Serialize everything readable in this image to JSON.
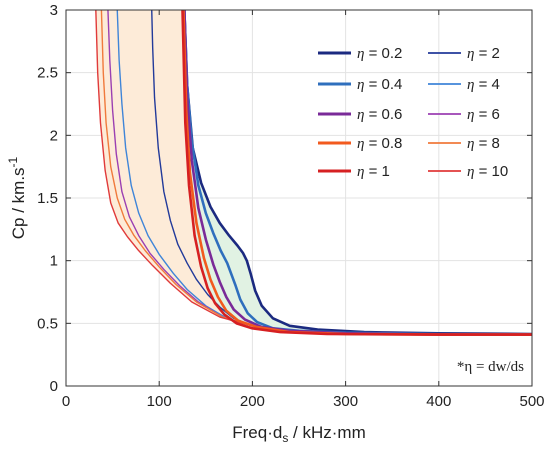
{
  "chart_data": {
    "type": "line",
    "title": "",
    "xlabel": "Freq·d",
    "xlabel_sub": "s",
    "xlabel_rest": " / kHz·mm",
    "ylabel": "Cp / km.s",
    "ylabel_sup": "-1",
    "xlim": [
      0,
      500
    ],
    "ylim": [
      0,
      3
    ],
    "xticks": [
      0,
      100,
      200,
      300,
      400,
      500
    ],
    "yticks": [
      0,
      0.5,
      1,
      1.5,
      2,
      2.5,
      3
    ],
    "xtick_labels": [
      "0",
      "100",
      "200",
      "300",
      "400",
      "500"
    ],
    "ytick_labels": [
      "0",
      "0.5",
      "1",
      "1.5",
      "2",
      "2.5",
      "3"
    ],
    "grid": true,
    "legend_position": "top-right",
    "legend_symbol": "η",
    "legend_eq": " = ",
    "annotation": "*η = dw/ds",
    "colors": {
      "shade_orange": "#fdebd8",
      "shade_green": "#e1f2e3",
      "grid": "#e3e3e3"
    },
    "series": [
      {
        "name": "0.2",
        "color": "#1b2a80",
        "width": 2.6,
        "x": [
          127,
          130,
          136,
          145,
          155,
          165,
          175,
          184,
          190,
          194,
          198,
          203,
          210,
          222,
          240,
          270,
          320,
          400,
          500
        ],
        "y": [
          3.0,
          2.4,
          1.9,
          1.62,
          1.43,
          1.3,
          1.2,
          1.12,
          1.06,
          1.0,
          0.9,
          0.76,
          0.64,
          0.54,
          0.48,
          0.45,
          0.43,
          0.42,
          0.415
        ]
      },
      {
        "name": "0.4",
        "color": "#2f6fbd",
        "width": 2.6,
        "x": [
          127,
          130,
          135,
          142,
          150,
          158,
          166,
          173,
          178,
          182,
          187,
          195,
          205,
          222,
          250,
          300,
          400,
          500
        ],
        "y": [
          3.0,
          2.4,
          1.95,
          1.6,
          1.38,
          1.22,
          1.08,
          0.98,
          0.88,
          0.8,
          0.69,
          0.58,
          0.51,
          0.46,
          0.44,
          0.425,
          0.415,
          0.41
        ]
      },
      {
        "name": "0.6",
        "color": "#7a2a98",
        "width": 2.6,
        "x": [
          127,
          130,
          135,
          142,
          150,
          158,
          165,
          172,
          180,
          192,
          210,
          240,
          300,
          400,
          500
        ],
        "y": [
          3.0,
          2.3,
          1.8,
          1.42,
          1.17,
          0.97,
          0.83,
          0.71,
          0.61,
          0.53,
          0.47,
          0.44,
          0.42,
          0.41,
          0.41
        ]
      },
      {
        "name": "0.8",
        "color": "#f25a1e",
        "width": 2.6,
        "x": [
          126,
          129,
          133,
          140,
          148,
          155,
          163,
          172,
          185,
          205,
          240,
          300,
          400,
          500
        ],
        "y": [
          3.0,
          2.2,
          1.7,
          1.3,
          1.02,
          0.85,
          0.71,
          0.6,
          0.52,
          0.47,
          0.43,
          0.415,
          0.41,
          0.41
        ]
      },
      {
        "name": "1",
        "color": "#d62022",
        "width": 2.6,
        "x": [
          125,
          128,
          132,
          138,
          145,
          152,
          160,
          170,
          183,
          200,
          230,
          280,
          400,
          500
        ],
        "y": [
          3.0,
          2.1,
          1.6,
          1.2,
          0.95,
          0.78,
          0.66,
          0.57,
          0.5,
          0.46,
          0.43,
          0.415,
          0.41,
          0.41
        ]
      },
      {
        "name": "2",
        "color": "#223a9a",
        "width": 1.4,
        "x": [
          92,
          93,
          95,
          99,
          105,
          112,
          120,
          130,
          140,
          152,
          165,
          180,
          200,
          230,
          280,
          400,
          500
        ],
        "y": [
          3.0,
          2.7,
          2.3,
          1.9,
          1.55,
          1.32,
          1.13,
          0.98,
          0.85,
          0.73,
          0.63,
          0.54,
          0.48,
          0.44,
          0.42,
          0.41,
          0.41
        ]
      },
      {
        "name": "4",
        "color": "#3f85d8",
        "width": 1.4,
        "x": [
          55,
          57,
          60,
          64,
          70,
          78,
          88,
          100,
          115,
          130,
          150,
          175,
          205,
          250,
          320,
          500
        ],
        "y": [
          3.0,
          2.6,
          2.25,
          1.9,
          1.6,
          1.38,
          1.2,
          1.05,
          0.9,
          0.77,
          0.64,
          0.53,
          0.47,
          0.43,
          0.42,
          0.41
        ]
      },
      {
        "name": "6",
        "color": "#9b3fb2",
        "width": 1.4,
        "x": [
          45,
          47,
          50,
          54,
          60,
          68,
          78,
          90,
          105,
          122,
          142,
          168,
          200,
          250,
          320,
          500
        ],
        "y": [
          3.0,
          2.6,
          2.2,
          1.85,
          1.55,
          1.35,
          1.2,
          1.06,
          0.93,
          0.8,
          0.67,
          0.55,
          0.48,
          0.44,
          0.42,
          0.41
        ]
      },
      {
        "name": "8",
        "color": "#f07a3c",
        "width": 1.4,
        "x": [
          38,
          40,
          43,
          48,
          55,
          63,
          73,
          85,
          100,
          118,
          140,
          168,
          200,
          250,
          320,
          500
        ],
        "y": [
          3.0,
          2.5,
          2.1,
          1.75,
          1.5,
          1.33,
          1.2,
          1.08,
          0.95,
          0.81,
          0.67,
          0.55,
          0.48,
          0.44,
          0.42,
          0.41
        ]
      },
      {
        "name": "10",
        "color": "#e03a3a",
        "width": 1.4,
        "x": [
          32,
          34,
          37,
          42,
          48,
          56,
          66,
          78,
          93,
          112,
          135,
          165,
          200,
          250,
          320,
          500
        ],
        "y": [
          3.0,
          2.5,
          2.1,
          1.72,
          1.46,
          1.3,
          1.19,
          1.08,
          0.96,
          0.82,
          0.67,
          0.55,
          0.48,
          0.44,
          0.42,
          0.41
        ]
      }
    ]
  }
}
